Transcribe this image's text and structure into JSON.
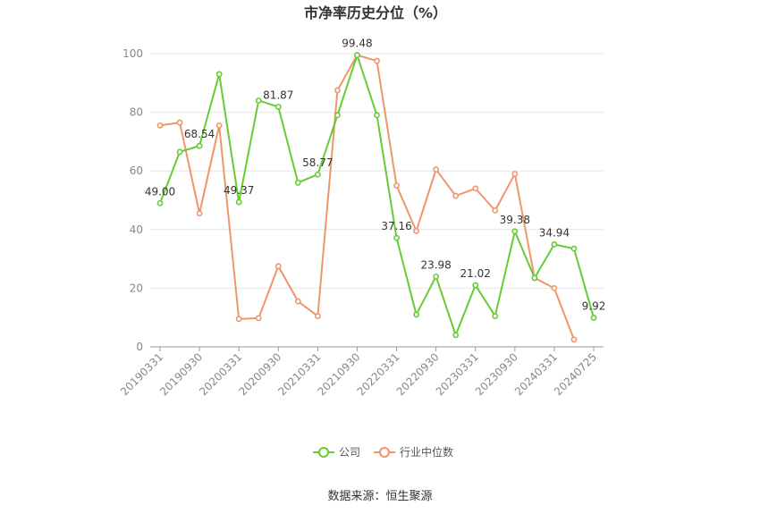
{
  "chart_data": {
    "type": "line",
    "title": "市净率历史分位（%）",
    "xlabel": "",
    "ylabel": "",
    "ylim": [
      0,
      100
    ],
    "yticks": [
      0,
      20,
      40,
      60,
      80,
      100
    ],
    "grid": true,
    "legend_position": "bottom",
    "x": [
      "20190331",
      "20190630",
      "20190930",
      "20191231",
      "20200331",
      "20200630",
      "20200930",
      "20201231",
      "20210331",
      "20210630",
      "20210930",
      "20211231",
      "20220331",
      "20220630",
      "20220930",
      "20221231",
      "20230331",
      "20230630",
      "20230930",
      "20231231",
      "20240331",
      "20240630",
      "20240725"
    ],
    "xtick_labels": [
      "20190331",
      "20190930",
      "20200331",
      "20200930",
      "20210331",
      "20210930",
      "20220331",
      "20220930",
      "20230331",
      "20230930",
      "20240331",
      "20240725"
    ],
    "series": [
      {
        "name": "公司",
        "color": "#66cc33",
        "values": [
          49.0,
          66.5,
          68.54,
          93.0,
          49.37,
          84.0,
          81.87,
          56.0,
          58.77,
          79.0,
          99.48,
          79.0,
          37.16,
          11.0,
          23.98,
          4.0,
          21.02,
          10.5,
          39.38,
          23.5,
          34.94,
          33.5,
          9.92
        ],
        "labels": [
          "49.00",
          null,
          "68.54",
          null,
          "49.37",
          null,
          "81.87",
          null,
          "58.77",
          null,
          "99.48",
          null,
          "37.16",
          null,
          "23.98",
          null,
          "21.02",
          null,
          "39.38",
          null,
          "34.94",
          null,
          "9.92"
        ]
      },
      {
        "name": "行业中位数",
        "color": "#f0956a",
        "values": [
          75.5,
          76.5,
          45.5,
          75.5,
          9.5,
          9.8,
          27.5,
          15.5,
          10.5,
          87.5,
          99.5,
          97.5,
          55.0,
          39.5,
          60.5,
          51.5,
          54.0,
          46.5,
          59.0,
          23.5,
          20.0,
          2.5,
          null
        ],
        "labels": []
      }
    ]
  },
  "source_text": "数据来源：恒生聚源"
}
